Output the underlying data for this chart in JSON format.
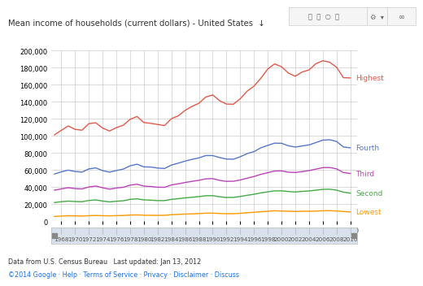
{
  "title": "Mean income of households (current dollars) - United States  ↓",
  "years": [
    1967,
    1968,
    1969,
    1970,
    1971,
    1972,
    1973,
    1974,
    1975,
    1976,
    1977,
    1978,
    1979,
    1980,
    1981,
    1982,
    1983,
    1984,
    1985,
    1986,
    1987,
    1988,
    1989,
    1990,
    1991,
    1992,
    1993,
    1994,
    1995,
    1996,
    1997,
    1998,
    1999,
    2000,
    2001,
    2002,
    2003,
    2004,
    2005,
    2006,
    2007,
    2008,
    2009,
    2010
  ],
  "highest": [
    101284,
    106585,
    111647,
    107671,
    106742,
    114398,
    115397,
    109174,
    105786,
    109699,
    112557,
    119459,
    122742,
    115668,
    114749,
    113449,
    112133,
    120217,
    123538,
    129970,
    134575,
    138231,
    145528,
    148008,
    141286,
    137299,
    137082,
    143513,
    152350,
    158278,
    167534,
    178304,
    184284,
    181044,
    173543,
    169873,
    174791,
    177267,
    184500,
    188007,
    186267,
    180424,
    168170,
    167905
  ],
  "fourth": [
    55467,
    57941,
    60000,
    58396,
    57628,
    61432,
    62575,
    59397,
    57607,
    59484,
    61189,
    65029,
    66920,
    63800,
    63588,
    62390,
    61895,
    65889,
    68132,
    70561,
    72588,
    74334,
    77026,
    77019,
    74690,
    72927,
    72764,
    75592,
    79293,
    81643,
    86090,
    88951,
    91542,
    91382,
    88519,
    86985,
    88252,
    89488,
    92234,
    95107,
    95555,
    93567,
    87063,
    86142
  ],
  "third": [
    36493,
    38055,
    39397,
    38408,
    37937,
    40296,
    41350,
    39300,
    37700,
    39028,
    39881,
    42431,
    43459,
    41228,
    40791,
    39996,
    39852,
    42610,
    43958,
    45521,
    46849,
    48069,
    49825,
    50044,
    48017,
    46830,
    46967,
    48426,
    50566,
    52498,
    55015,
    56950,
    58949,
    59063,
    57568,
    57243,
    58203,
    59431,
    61165,
    62882,
    63042,
    61540,
    57178,
    56090
  ],
  "second": [
    22071,
    23028,
    23727,
    23282,
    22993,
    24504,
    25155,
    23769,
    22774,
    23598,
    24065,
    25804,
    26381,
    25163,
    24866,
    24299,
    24310,
    25769,
    26564,
    27537,
    28205,
    29026,
    30018,
    30123,
    28844,
    28018,
    28022,
    29136,
    30519,
    31736,
    33334,
    34563,
    35699,
    35704,
    34998,
    34384,
    35094,
    35563,
    36499,
    37500,
    37638,
    36623,
    34202,
    33073
  ],
  "lowest": [
    5765,
    6186,
    6570,
    6430,
    6257,
    6700,
    6941,
    6642,
    6480,
    6756,
    6906,
    7425,
    7623,
    7186,
    7149,
    7009,
    7139,
    7837,
    8175,
    8490,
    8808,
    9103,
    9614,
    9681,
    9217,
    8953,
    8960,
    9427,
    10170,
    10693,
    11265,
    11782,
    12437,
    12057,
    11875,
    11548,
    11781,
    11921,
    12000,
    12467,
    12524,
    12111,
    11552,
    11034
  ],
  "line_colors": {
    "highest": "#e05a4a",
    "fourth": "#5577cc",
    "third": "#bb44bb",
    "second": "#44aa44",
    "lowest": "#ff9900"
  },
  "label_colors": {
    "highest": "#e05a4a",
    "fourth": "#5577cc",
    "third": "#bb44bb",
    "second": "#44aa44",
    "lowest": "#ff9900"
  },
  "ylim": [
    0,
    200000
  ],
  "yticks": [
    0,
    20000,
    40000,
    60000,
    80000,
    100000,
    120000,
    140000,
    160000,
    180000,
    200000
  ],
  "xticks": [
    1968,
    1970,
    1972,
    1974,
    1976,
    1978,
    1980,
    1982,
    1984,
    1986,
    1988,
    1990,
    1992,
    1994,
    1996,
    1998,
    2000,
    2002,
    2004,
    2006,
    2008,
    2010
  ],
  "xmin": 1966.5,
  "xmax": 2011.0,
  "footer1": "Data from U.S. Census Bureau   Last updated: Jan 13, 2012",
  "footer2": "©2014 Google · Help · Terms of Service · Privacy · Disclaimer · Discuss",
  "background_color": "#ffffff",
  "plot_bg": "#ffffff",
  "grid_color": "#cccccc",
  "toolbar_text": "⬜ ⬜ ◎ ⬜    ⚙  ·   ∞"
}
